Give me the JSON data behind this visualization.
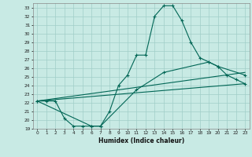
{
  "title": "",
  "xlabel": "Humidex (Indice chaleur)",
  "xlim": [
    -0.5,
    23.5
  ],
  "ylim": [
    19,
    33.5
  ],
  "xticks": [
    0,
    1,
    2,
    3,
    4,
    5,
    6,
    7,
    8,
    9,
    10,
    11,
    12,
    13,
    14,
    15,
    16,
    17,
    18,
    19,
    20,
    21,
    22,
    23
  ],
  "yticks": [
    19,
    20,
    21,
    22,
    23,
    24,
    25,
    26,
    27,
    28,
    29,
    30,
    31,
    32,
    33
  ],
  "bg_color": "#c8eae4",
  "line_color": "#006655",
  "grid_color": "#a0cec8",
  "lines": [
    {
      "x": [
        0,
        1,
        2,
        3,
        4,
        5,
        6,
        7,
        8,
        9,
        10,
        11,
        12,
        13,
        14,
        15,
        16,
        17,
        18,
        19,
        20,
        21,
        22,
        23
      ],
      "y": [
        22.2,
        22.2,
        22.2,
        20.2,
        19.3,
        19.3,
        19.3,
        19.3,
        21.0,
        24.0,
        25.2,
        27.5,
        27.5,
        32.0,
        33.2,
        33.2,
        31.5,
        29.0,
        27.2,
        26.7,
        26.2,
        25.2,
        24.7,
        24.2
      ],
      "marker": true
    },
    {
      "x": [
        0,
        6,
        7,
        11,
        14,
        19,
        20,
        23
      ],
      "y": [
        22.2,
        19.3,
        19.3,
        23.5,
        25.5,
        26.7,
        26.2,
        25.2
      ],
      "marker": true
    },
    {
      "x": [
        0,
        23
      ],
      "y": [
        22.2,
        25.5
      ],
      "marker": false
    },
    {
      "x": [
        0,
        23
      ],
      "y": [
        22.2,
        24.2
      ],
      "marker": false
    }
  ]
}
